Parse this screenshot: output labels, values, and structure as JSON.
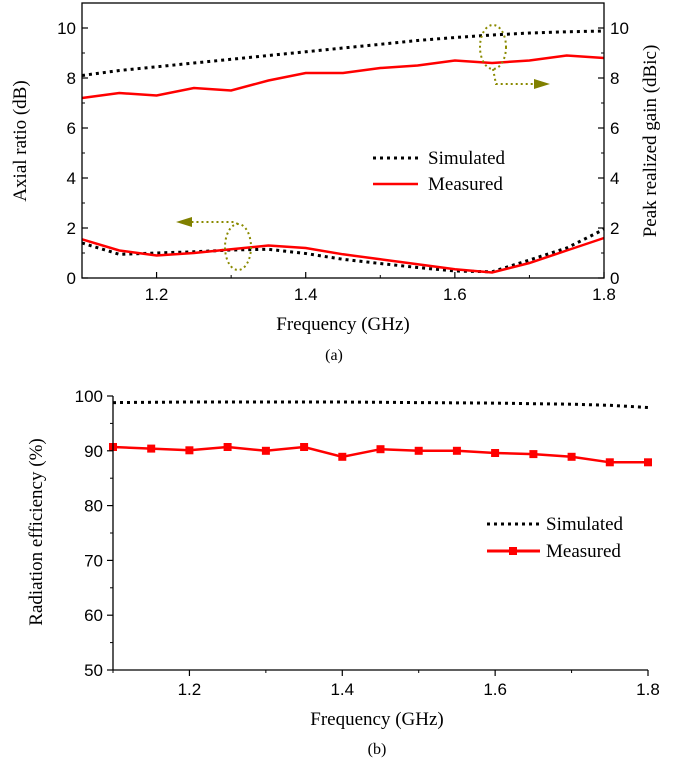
{
  "chart_data": [
    {
      "type": "line",
      "caption": "(a)",
      "xlabel": "Frequency (GHz)",
      "ylabel_left": "Axial ratio (dB)",
      "ylabel_right": "Peak realized gain (dBic)",
      "xlim": [
        1.1,
        1.8
      ],
      "ylim_left": [
        0,
        11
      ],
      "ylim_right": [
        0,
        11
      ],
      "xticks": [
        "1.2",
        "1.4",
        "1.6",
        "1.8"
      ],
      "yticks_left": [
        "0",
        "2",
        "4",
        "6",
        "8",
        "10"
      ],
      "yticks_right": [
        "0",
        "2",
        "4",
        "6",
        "8",
        "10"
      ],
      "legend": {
        "position": "center-right",
        "entries": [
          "Simulated",
          "Measured"
        ]
      },
      "series": [
        {
          "name": "Simulated",
          "quantity": "gain",
          "axis": "right",
          "style": "dotted",
          "color": "#000000",
          "x": [
            1.1,
            1.15,
            1.2,
            1.25,
            1.3,
            1.35,
            1.4,
            1.45,
            1.5,
            1.55,
            1.6,
            1.65,
            1.7,
            1.75,
            1.8
          ],
          "y": [
            8.1,
            8.3,
            8.45,
            8.6,
            8.75,
            8.9,
            9.05,
            9.2,
            9.35,
            9.5,
            9.62,
            9.72,
            9.8,
            9.85,
            9.88
          ]
        },
        {
          "name": "Measured",
          "quantity": "gain",
          "axis": "right",
          "style": "solid",
          "color": "#ff0000",
          "x": [
            1.1,
            1.15,
            1.2,
            1.25,
            1.3,
            1.35,
            1.4,
            1.45,
            1.5,
            1.55,
            1.6,
            1.65,
            1.7,
            1.75,
            1.8
          ],
          "y": [
            7.2,
            7.4,
            7.3,
            7.6,
            7.5,
            7.9,
            8.2,
            8.2,
            8.4,
            8.5,
            8.7,
            8.6,
            8.7,
            8.9,
            8.8
          ]
        },
        {
          "name": "Simulated",
          "quantity": "axial ratio",
          "axis": "left",
          "style": "dotted",
          "color": "#000000",
          "x": [
            1.1,
            1.15,
            1.2,
            1.25,
            1.3,
            1.35,
            1.4,
            1.45,
            1.5,
            1.55,
            1.6,
            1.65,
            1.7,
            1.75,
            1.8
          ],
          "y": [
            1.4,
            0.95,
            1.0,
            1.05,
            1.12,
            1.15,
            0.98,
            0.75,
            0.58,
            0.42,
            0.28,
            0.25,
            0.72,
            1.2,
            1.95
          ]
        },
        {
          "name": "Measured",
          "quantity": "axial ratio",
          "axis": "left",
          "style": "solid",
          "color": "#ff0000",
          "x": [
            1.1,
            1.15,
            1.2,
            1.25,
            1.3,
            1.35,
            1.4,
            1.45,
            1.5,
            1.55,
            1.6,
            1.65,
            1.7,
            1.75,
            1.8
          ],
          "y": [
            1.55,
            1.1,
            0.9,
            1.0,
            1.15,
            1.3,
            1.2,
            0.95,
            0.75,
            0.55,
            0.35,
            0.22,
            0.6,
            1.1,
            1.6
          ]
        }
      ]
    },
    {
      "type": "line",
      "caption": "(b)",
      "xlabel": "Frequency (GHz)",
      "ylabel": "Radiation efficiency (%)",
      "xlim": [
        1.1,
        1.8
      ],
      "ylim": [
        50,
        100
      ],
      "xticks": [
        "1.2",
        "1.4",
        "1.6",
        "1.8"
      ],
      "yticks": [
        "50",
        "60",
        "70",
        "80",
        "90",
        "100"
      ],
      "legend": {
        "position": "center-right",
        "entries": [
          "Simulated",
          "Measured"
        ]
      },
      "series": [
        {
          "name": "Simulated",
          "style": "dotted",
          "color": "#000000",
          "x": [
            1.1,
            1.2,
            1.3,
            1.4,
            1.5,
            1.6,
            1.65,
            1.7,
            1.75,
            1.8
          ],
          "y": [
            98.8,
            98.9,
            98.9,
            98.9,
            98.8,
            98.7,
            98.6,
            98.5,
            98.3,
            97.9
          ]
        },
        {
          "name": "Measured",
          "style": "solid-square-markers",
          "color": "#ff0000",
          "x": [
            1.1,
            1.15,
            1.2,
            1.25,
            1.3,
            1.35,
            1.4,
            1.45,
            1.5,
            1.55,
            1.6,
            1.65,
            1.7,
            1.75,
            1.8
          ],
          "y": [
            90.7,
            90.4,
            90.1,
            90.7,
            90.0,
            90.7,
            88.9,
            90.3,
            90.0,
            90.0,
            89.6,
            89.4,
            88.9,
            87.9,
            87.9
          ]
        }
      ]
    }
  ]
}
